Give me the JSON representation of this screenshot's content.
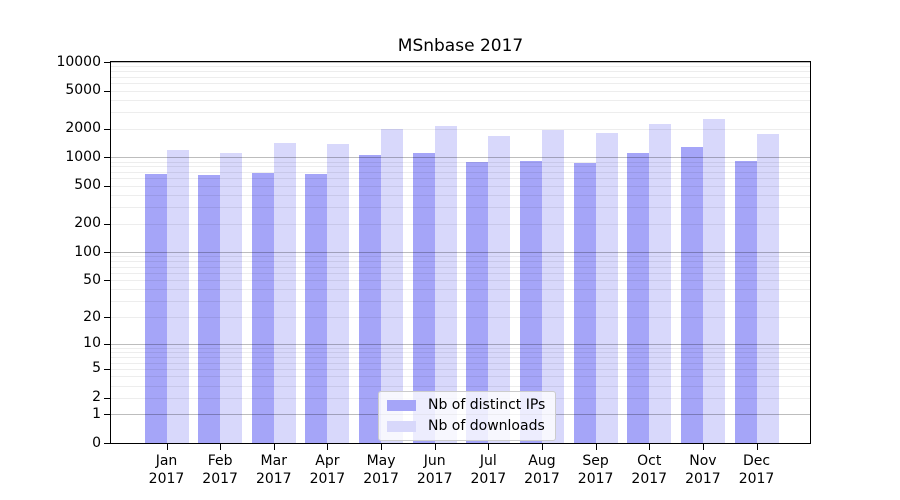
{
  "figure": {
    "title": "MSnbase 2017",
    "background": "#ffffff"
  },
  "chart_data": {
    "type": "bar",
    "title": "MSnbase 2017",
    "categories": [
      "Jan",
      "Feb",
      "Mar",
      "Apr",
      "May",
      "Jun",
      "Jul",
      "Aug",
      "Sep",
      "Oct",
      "Nov",
      "Dec"
    ],
    "year_label": "2017",
    "series": [
      {
        "name": "Nb of distinct IPs",
        "color": "#a5a5f8",
        "values": [
          660,
          650,
          680,
          670,
          1060,
          1110,
          890,
          910,
          870,
          1110,
          1280,
          910
        ]
      },
      {
        "name": "Nb of downloads",
        "color": "#d8d8fb",
        "values": [
          1180,
          1110,
          1410,
          1380,
          1980,
          2130,
          1670,
          1930,
          1780,
          2230,
          2520,
          1760
        ]
      }
    ],
    "y_scale": "log1p",
    "ylim": [
      0,
      10000
    ],
    "y_ticks": [
      0,
      1,
      2,
      5,
      10,
      20,
      50,
      100,
      200,
      500,
      1000,
      2000,
      5000,
      10000
    ],
    "grid": "horizontal minor+major log gridlines",
    "legend_position": "inside lower-center",
    "colors": {
      "grid_minor": "rgba(0,0,0,0.07)",
      "grid_major": "rgba(0,0,0,0.26)",
      "axis_frame": "#000000",
      "legend_border": "#cccccc",
      "legend_background": "rgba(255,255,255,0.8)"
    }
  }
}
